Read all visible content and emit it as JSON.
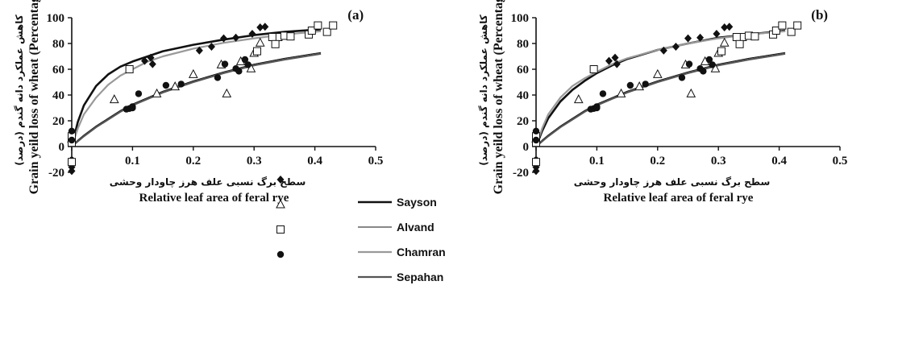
{
  "chart_data": [
    {
      "type": "scatter",
      "panel_label": "(a)",
      "ylabel": "Grain yeild loss of wheat (Percentage)",
      "ylabel_fa": "کاهش عملکرد دانه گندم (درصد)",
      "xlabel": "Relative leaf area of feral rye",
      "xlabel_fa": "سطح برگ نسبی علف هرز چاودار وحشی",
      "xlim": [
        0,
        0.5
      ],
      "ylim": [
        -20,
        100
      ],
      "xticks": [
        "0",
        "0.1",
        "0.2",
        "0.3",
        "0.4",
        "0.5"
      ],
      "yticks": [
        "-20",
        "0",
        "20",
        "40",
        "60",
        "80",
        "100"
      ],
      "series": [
        {
          "name": "Sayson",
          "marker": "diamond",
          "line_color": "#111111",
          "line_width": 2.6,
          "points": [
            [
              0,
              9
            ],
            [
              0,
              -16
            ],
            [
              0,
              -19
            ],
            [
              0.12,
              66.5
            ],
            [
              0.13,
              69
            ],
            [
              0.133,
              64
            ],
            [
              0.21,
              74.5
            ],
            [
              0.23,
              77.5
            ],
            [
              0.25,
              84
            ],
            [
              0.27,
              84.5
            ],
            [
              0.297,
              87.5
            ],
            [
              0.31,
              92.5
            ],
            [
              0.318,
              93
            ]
          ],
          "curve": [
            [
              0,
              0
            ],
            [
              0.01,
              19
            ],
            [
              0.02,
              32
            ],
            [
              0.04,
              47
            ],
            [
              0.06,
              56
            ],
            [
              0.08,
              62
            ],
            [
              0.1,
              66
            ],
            [
              0.125,
              70
            ],
            [
              0.15,
              74
            ],
            [
              0.2,
              79
            ],
            [
              0.25,
              83
            ],
            [
              0.3,
              86.5
            ],
            [
              0.35,
              89
            ],
            [
              0.41,
              91
            ]
          ]
        },
        {
          "name": "Alvand",
          "marker": "triangle",
          "line_color": "#111111",
          "line_width": 1,
          "points": [
            [
              0,
              6
            ],
            [
              0.07,
              36.5
            ],
            [
              0.14,
              41
            ],
            [
              0.17,
              46.5
            ],
            [
              0.2,
              56
            ],
            [
              0.246,
              63.5
            ],
            [
              0.255,
              41
            ],
            [
              0.278,
              66
            ],
            [
              0.295,
              60.5
            ],
            [
              0.3,
              72.5
            ],
            [
              0.31,
              80.5
            ]
          ],
          "curve": [
            [
              0,
              0
            ],
            [
              0.01,
              5
            ],
            [
              0.02,
              9
            ],
            [
              0.04,
              16
            ],
            [
              0.06,
              22
            ],
            [
              0.08,
              28
            ],
            [
              0.1,
              33
            ],
            [
              0.15,
              43
            ],
            [
              0.2,
              51
            ],
            [
              0.25,
              58
            ],
            [
              0.3,
              64
            ],
            [
              0.35,
              68.5
            ],
            [
              0.41,
              73
            ]
          ]
        },
        {
          "name": "Chamran",
          "marker": "square",
          "line_color": "#999999",
          "line_width": 2.2,
          "points": [
            [
              0,
              3
            ],
            [
              0,
              8
            ],
            [
              0,
              -12
            ],
            [
              0.095,
              60
            ],
            [
              0.305,
              74
            ],
            [
              0.34,
              85
            ],
            [
              0.35,
              86
            ],
            [
              0.36,
              85.5
            ],
            [
              0.33,
              85
            ],
            [
              0.335,
              79.5
            ],
            [
              0.39,
              87
            ],
            [
              0.395,
              90
            ],
            [
              0.405,
              94
            ],
            [
              0.42,
              89
            ],
            [
              0.43,
              94
            ]
          ],
          "curve": [
            [
              0,
              0
            ],
            [
              0.01,
              14
            ],
            [
              0.02,
              25
            ],
            [
              0.04,
              38
            ],
            [
              0.06,
              48
            ],
            [
              0.08,
              55
            ],
            [
              0.1,
              60
            ],
            [
              0.125,
              66
            ],
            [
              0.15,
              70
            ],
            [
              0.2,
              76
            ],
            [
              0.25,
              80.5
            ],
            [
              0.3,
              84
            ],
            [
              0.35,
              87
            ],
            [
              0.41,
              89.5
            ]
          ]
        },
        {
          "name": "Sepahan",
          "marker": "circle",
          "line_color": "#555555",
          "line_width": 2.2,
          "points": [
            [
              0,
              12
            ],
            [
              0,
              5
            ],
            [
              0.09,
              29
            ],
            [
              0.095,
              29.5
            ],
            [
              0.1,
              31
            ],
            [
              0.1,
              30
            ],
            [
              0.11,
              41
            ],
            [
              0.155,
              47.5
            ],
            [
              0.18,
              48.5
            ],
            [
              0.24,
              53.5
            ],
            [
              0.252,
              64
            ],
            [
              0.27,
              60.5
            ],
            [
              0.275,
              58.5
            ],
            [
              0.285,
              67.5
            ],
            [
              0.29,
              63.5
            ]
          ],
          "curve": [
            [
              0,
              0
            ],
            [
              0.01,
              4
            ],
            [
              0.02,
              8
            ],
            [
              0.04,
              15
            ],
            [
              0.06,
              21
            ],
            [
              0.08,
              27
            ],
            [
              0.1,
              32
            ],
            [
              0.15,
              42
            ],
            [
              0.2,
              50
            ],
            [
              0.25,
              57
            ],
            [
              0.3,
              63
            ],
            [
              0.35,
              67.5
            ],
            [
              0.41,
              72
            ]
          ]
        }
      ]
    },
    {
      "type": "scatter",
      "panel_label": "(b)",
      "ylabel": "Grain yeild loss of wheat (Percentage)",
      "ylabel_fa": "کاهش عملکرد دانه گندم (درصد)",
      "xlabel": "Relative leaf area of feral rye",
      "xlabel_fa": "سطح برگ نسبی علف هرز چاودار وحشی",
      "xlim": [
        0,
        0.5
      ],
      "ylim": [
        -20,
        100
      ],
      "xticks": [
        "0",
        "0.1",
        "0.2",
        "0.3",
        "0.4",
        "0.5"
      ],
      "yticks": [
        "-20",
        "0",
        "20",
        "40",
        "60",
        "80",
        "100"
      ],
      "series": [
        {
          "name": "Sayson",
          "marker": "diamond",
          "line_color": "#111111",
          "line_width": 2.6,
          "points": [
            [
              0,
              9
            ],
            [
              0,
              -16
            ],
            [
              0,
              -19
            ],
            [
              0.12,
              66.5
            ],
            [
              0.13,
              69
            ],
            [
              0.133,
              64
            ],
            [
              0.21,
              74.5
            ],
            [
              0.23,
              77.5
            ],
            [
              0.25,
              84
            ],
            [
              0.27,
              84.5
            ],
            [
              0.297,
              87.5
            ],
            [
              0.31,
              92.5
            ],
            [
              0.318,
              93
            ]
          ],
          "curve": [
            [
              0,
              0
            ],
            [
              0.01,
              12
            ],
            [
              0.02,
              22
            ],
            [
              0.04,
              35
            ],
            [
              0.06,
              44
            ],
            [
              0.08,
              51
            ],
            [
              0.1,
              57
            ],
            [
              0.125,
              63
            ],
            [
              0.15,
              68
            ],
            [
              0.2,
              75
            ],
            [
              0.25,
              80
            ],
            [
              0.3,
              84.5
            ],
            [
              0.35,
              87
            ],
            [
              0.41,
              90
            ]
          ]
        },
        {
          "name": "Alvand",
          "marker": "triangle",
          "line_color": "#111111",
          "line_width": 1,
          "points": [
            [
              0,
              6
            ],
            [
              0.07,
              36.5
            ],
            [
              0.14,
              41
            ],
            [
              0.17,
              46.5
            ],
            [
              0.2,
              56
            ],
            [
              0.246,
              63.5
            ],
            [
              0.255,
              41
            ],
            [
              0.278,
              66
            ],
            [
              0.295,
              60.5
            ],
            [
              0.3,
              72.5
            ],
            [
              0.31,
              80.5
            ]
          ],
          "curve": [
            [
              0,
              0
            ],
            [
              0.01,
              5
            ],
            [
              0.02,
              9
            ],
            [
              0.04,
              16
            ],
            [
              0.06,
              22
            ],
            [
              0.08,
              28
            ],
            [
              0.1,
              33
            ],
            [
              0.15,
              43
            ],
            [
              0.2,
              51
            ],
            [
              0.25,
              58
            ],
            [
              0.3,
              64
            ],
            [
              0.35,
              68.5
            ],
            [
              0.41,
              73
            ]
          ]
        },
        {
          "name": "Chamran",
          "marker": "square",
          "line_color": "#999999",
          "line_width": 2.2,
          "points": [
            [
              0,
              3
            ],
            [
              0,
              8
            ],
            [
              0,
              -12
            ],
            [
              0.095,
              60
            ],
            [
              0.305,
              74
            ],
            [
              0.34,
              85
            ],
            [
              0.35,
              86
            ],
            [
              0.36,
              85.5
            ],
            [
              0.33,
              85
            ],
            [
              0.335,
              79.5
            ],
            [
              0.39,
              87
            ],
            [
              0.395,
              90
            ],
            [
              0.405,
              94
            ],
            [
              0.42,
              89
            ],
            [
              0.43,
              94
            ]
          ],
          "curve": [
            [
              0,
              0
            ],
            [
              0.01,
              14
            ],
            [
              0.02,
              25
            ],
            [
              0.04,
              38
            ],
            [
              0.06,
              47
            ],
            [
              0.08,
              53
            ],
            [
              0.1,
              58
            ],
            [
              0.125,
              64
            ],
            [
              0.15,
              68.5
            ],
            [
              0.2,
              75
            ],
            [
              0.25,
              80
            ],
            [
              0.3,
              84
            ],
            [
              0.35,
              87
            ],
            [
              0.41,
              89.5
            ]
          ]
        },
        {
          "name": "Sepahan",
          "marker": "circle",
          "line_color": "#555555",
          "line_width": 2.2,
          "points": [
            [
              0,
              12
            ],
            [
              0,
              5
            ],
            [
              0.09,
              29
            ],
            [
              0.095,
              29.5
            ],
            [
              0.1,
              31
            ],
            [
              0.1,
              30
            ],
            [
              0.11,
              41
            ],
            [
              0.155,
              47.5
            ],
            [
              0.18,
              48.5
            ],
            [
              0.24,
              53.5
            ],
            [
              0.252,
              64
            ],
            [
              0.27,
              60.5
            ],
            [
              0.275,
              58.5
            ],
            [
              0.285,
              67.5
            ],
            [
              0.29,
              63.5
            ]
          ],
          "curve": [
            [
              0,
              0
            ],
            [
              0.01,
              4
            ],
            [
              0.02,
              8
            ],
            [
              0.04,
              15
            ],
            [
              0.06,
              21
            ],
            [
              0.08,
              27
            ],
            [
              0.1,
              32
            ],
            [
              0.15,
              42
            ],
            [
              0.2,
              50
            ],
            [
              0.25,
              57
            ],
            [
              0.3,
              63
            ],
            [
              0.35,
              67.5
            ],
            [
              0.41,
              72
            ]
          ]
        }
      ]
    }
  ]
}
